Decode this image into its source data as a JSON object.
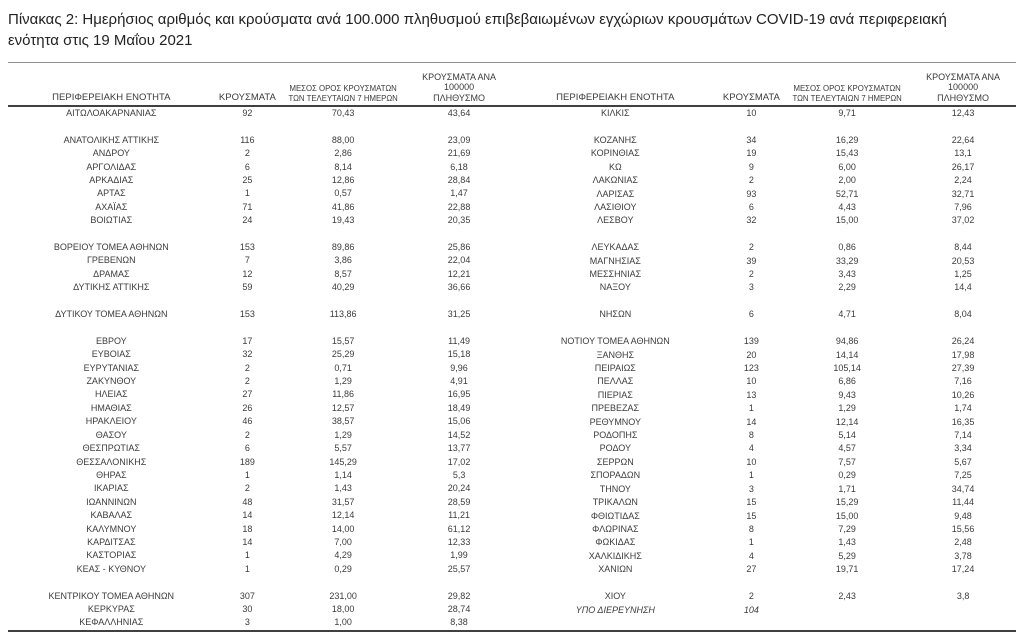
{
  "title": "Πίνακας 2: Ημερήσιος αριθμός και κρούσματα ανά 100.000 πληθυσμού επιβεβαιωμένων εγχώριων κρουσμάτων COVID-19 ανά περιφερειακή ενότητα στις 19 Μαΐου 2021",
  "colors": {
    "rule_dark": "#404040",
    "rule_light": "#909090",
    "text": "#3c3c3c"
  },
  "table": {
    "headers": {
      "region": "ΠΕΡΙΦΕΡΕΙΑΚΗ ΕΝΟΤΗΤΑ",
      "cases": "ΚΡΟΥΣΜΑΤΑ",
      "avg7_line1": "ΜΕΣΟΣ ΟΡΟΣ ΚΡΟΥΣΜΑΤΩΝ",
      "avg7_line2": "ΤΩΝ ΤΕΛΕΥΤΑΙΩΝ 7 ΗΜΕΡΩΝ",
      "per100k_line1": "ΚΡΟΥΣΜΑΤΑ ΑΝΑ 100000",
      "per100k_line2": "ΠΛΗΘΥΣΜΟ"
    },
    "left_rows": [
      {
        "cells": [
          "ΑΙΤΩΛΟΑΚΑΡΝΑΝΙΑΣ",
          "92",
          "70,43",
          "43,64"
        ]
      },
      {
        "cells": []
      },
      {
        "cells": [
          "ΑΝΑΤΟΛΙΚΗΣ ΑΤΤΙΚΗΣ",
          "116",
          "88,00",
          "23,09"
        ]
      },
      {
        "cells": [
          "ΑΝΔΡΟΥ",
          "2",
          "2,86",
          "21,69"
        ]
      },
      {
        "cells": [
          "ΑΡΓΟΛΙΔΑΣ",
          "6",
          "8,14",
          "6,18"
        ]
      },
      {
        "cells": [
          "ΑΡΚΑΔΙΑΣ",
          "25",
          "12,86",
          "28,84"
        ]
      },
      {
        "cells": [
          "ΑΡΤΑΣ",
          "1",
          "0,57",
          "1,47"
        ]
      },
      {
        "cells": [
          "ΑΧΑΪΑΣ",
          "71",
          "41,86",
          "22,88"
        ]
      },
      {
        "cells": [
          "ΒΟΙΩΤΙΑΣ",
          "24",
          "19,43",
          "20,35"
        ]
      },
      {
        "cells": []
      },
      {
        "cells": [
          "ΒΟΡΕΙΟΥ ΤΟΜΕΑ ΑΘΗΝΩΝ",
          "153",
          "89,86",
          "25,86"
        ]
      },
      {
        "cells": [
          "ΓΡΕΒΕΝΩΝ",
          "7",
          "3,86",
          "22,04"
        ]
      },
      {
        "cells": [
          "ΔΡΑΜΑΣ",
          "12",
          "8,57",
          "12,21"
        ]
      },
      {
        "cells": [
          "ΔΥΤΙΚΗΣ ΑΤΤΙΚΗΣ",
          "59",
          "40,29",
          "36,66"
        ]
      },
      {
        "cells": []
      },
      {
        "cells": [
          "ΔΥΤΙΚΟΥ ΤΟΜΕΑ ΑΘΗΝΩΝ",
          "153",
          "113,86",
          "31,25"
        ]
      },
      {
        "cells": []
      },
      {
        "cells": [
          "ΕΒΡΟΥ",
          "17",
          "15,57",
          "11,49"
        ]
      },
      {
        "cells": [
          "ΕΥΒΟΙΑΣ",
          "32",
          "25,29",
          "15,18"
        ]
      },
      {
        "cells": [
          "ΕΥΡΥΤΑΝΙΑΣ",
          "2",
          "0,71",
          "9,96"
        ]
      },
      {
        "cells": [
          "ΖΑΚΥΝΘΟΥ",
          "2",
          "1,29",
          "4,91"
        ]
      },
      {
        "cells": [
          "ΗΛΕΙΑΣ",
          "27",
          "11,86",
          "16,95"
        ]
      },
      {
        "cells": [
          "ΗΜΑΘΙΑΣ",
          "26",
          "12,57",
          "18,49"
        ]
      },
      {
        "cells": [
          "ΗΡΑΚΛΕΙΟΥ",
          "46",
          "38,57",
          "15,06"
        ]
      },
      {
        "cells": [
          "ΘΑΣΟΥ",
          "2",
          "1,29",
          "14,52"
        ]
      },
      {
        "cells": [
          "ΘΕΣΠΡΩΤΙΑΣ",
          "6",
          "5,57",
          "13,77"
        ]
      },
      {
        "cells": [
          "ΘΕΣΣΑΛΟΝΙΚΗΣ",
          "189",
          "145,29",
          "17,02"
        ]
      },
      {
        "cells": [
          "ΘΗΡΑΣ",
          "1",
          "1,14",
          "5,3"
        ]
      },
      {
        "cells": [
          "ΙΚΑΡΙΑΣ",
          "2",
          "1,43",
          "20,24"
        ]
      },
      {
        "cells": [
          "ΙΩΑΝΝΙΝΩΝ",
          "48",
          "31,57",
          "28,59"
        ]
      },
      {
        "cells": [
          "ΚΑΒΑΛΑΣ",
          "14",
          "12,14",
          "11,21"
        ]
      },
      {
        "cells": [
          "ΚΑΛΥΜΝΟΥ",
          "18",
          "14,00",
          "61,12"
        ]
      },
      {
        "cells": [
          "ΚΑΡΔΙΤΣΑΣ",
          "14",
          "7,00",
          "12,33"
        ]
      },
      {
        "cells": [
          "ΚΑΣΤΟΡΙΑΣ",
          "1",
          "4,29",
          "1,99"
        ]
      },
      {
        "cells": [
          "ΚΕΑΣ - ΚΥΘΝΟΥ",
          "1",
          "0,29",
          "25,57"
        ]
      },
      {
        "cells": []
      },
      {
        "cells": [
          "ΚΕΝΤΡΙΚΟΥ ΤΟΜΕΑ ΑΘΗΝΩΝ",
          "307",
          "231,00",
          "29,82"
        ]
      },
      {
        "cells": [
          "ΚΕΡΚΥΡΑΣ",
          "30",
          "18,00",
          "28,74"
        ]
      },
      {
        "cells": [
          "ΚΕΦΑΛΛΗΝΙΑΣ",
          "3",
          "1,00",
          "8,38"
        ]
      }
    ],
    "right_rows": [
      {
        "cells": [
          "ΚΙΛΚΙΣ",
          "10",
          "9,71",
          "12,43"
        ]
      },
      {
        "cells": []
      },
      {
        "cells": [
          "ΚΟΖΑΝΗΣ",
          "34",
          "16,29",
          "22,64"
        ]
      },
      {
        "cells": [
          "ΚΟΡΙΝΘΙΑΣ",
          "19",
          "15,43",
          "13,1"
        ]
      },
      {
        "cells": [
          "ΚΩ",
          "9",
          "6,00",
          "26,17"
        ]
      },
      {
        "cells": [
          "ΛΑΚΩΝΙΑΣ",
          "2",
          "2,00",
          "2,24"
        ]
      },
      {
        "cells": [
          "ΛΑΡΙΣΑΣ",
          "93",
          "52,71",
          "32,71"
        ]
      },
      {
        "cells": [
          "ΛΑΣΙΘΙΟΥ",
          "6",
          "4,43",
          "7,96"
        ]
      },
      {
        "cells": [
          "ΛΕΣΒΟΥ",
          "32",
          "15,00",
          "37,02"
        ]
      },
      {
        "cells": []
      },
      {
        "cells": [
          "ΛΕΥΚΑΔΑΣ",
          "2",
          "0,86",
          "8,44"
        ]
      },
      {
        "cells": [
          "ΜΑΓΝΗΣΙΑΣ",
          "39",
          "33,29",
          "20,53"
        ]
      },
      {
        "cells": [
          "ΜΕΣΣΗΝΙΑΣ",
          "2",
          "3,43",
          "1,25"
        ]
      },
      {
        "cells": [
          "ΝΑΞΟΥ",
          "3",
          "2,29",
          "14,4"
        ]
      },
      {
        "cells": []
      },
      {
        "cells": [
          "ΝΗΣΩΝ",
          "6",
          "4,71",
          "8,04"
        ]
      },
      {
        "cells": []
      },
      {
        "cells": [
          "ΝΟΤΙΟΥ ΤΟΜΕΑ ΑΘΗΝΩΝ",
          "139",
          "94,86",
          "26,24"
        ]
      },
      {
        "cells": [
          "ΞΑΝΘΗΣ",
          "20",
          "14,14",
          "17,98"
        ]
      },
      {
        "cells": [
          "ΠΕΙΡΑΙΩΣ",
          "123",
          "105,14",
          "27,39"
        ]
      },
      {
        "cells": [
          "ΠΕΛΛΑΣ",
          "10",
          "6,86",
          "7,16"
        ]
      },
      {
        "cells": [
          "ΠΙΕΡΙΑΣ",
          "13",
          "9,43",
          "10,26"
        ]
      },
      {
        "cells": [
          "ΠΡΕΒΕΖΑΣ",
          "1",
          "1,29",
          "1,74"
        ]
      },
      {
        "cells": [
          "ΡΕΘΥΜΝΟΥ",
          "14",
          "12,14",
          "16,35"
        ]
      },
      {
        "cells": [
          "ΡΟΔΟΠΗΣ",
          "8",
          "5,14",
          "7,14"
        ]
      },
      {
        "cells": [
          "ΡΟΔΟΥ",
          "4",
          "4,57",
          "3,34"
        ]
      },
      {
        "cells": [
          "ΣΕΡΡΩΝ",
          "10",
          "7,57",
          "5,67"
        ]
      },
      {
        "cells": [
          "ΣΠΟΡΑΔΩΝ",
          "1",
          "0,29",
          "7,25"
        ]
      },
      {
        "cells": [
          "ΤΗΝΟΥ",
          "3",
          "1,71",
          "34,74"
        ]
      },
      {
        "cells": [
          "ΤΡΙΚΑΛΩΝ",
          "15",
          "15,29",
          "11,44"
        ]
      },
      {
        "cells": [
          "ΦΘΙΩΤΙΔΑΣ",
          "15",
          "15,00",
          "9,48"
        ]
      },
      {
        "cells": [
          "ΦΛΩΡΙΝΑΣ",
          "8",
          "7,29",
          "15,56"
        ]
      },
      {
        "cells": [
          "ΦΩΚΙΔΑΣ",
          "1",
          "1,43",
          "2,48"
        ]
      },
      {
        "cells": [
          "ΧΑΛΚΙΔΙΚΗΣ",
          "4",
          "5,29",
          "3,78"
        ]
      },
      {
        "cells": [
          "ΧΑΝΙΩΝ",
          "27",
          "19,71",
          "17,24"
        ]
      },
      {
        "cells": []
      },
      {
        "cells": [
          "ΧΙΟΥ",
          "2",
          "2,43",
          "3,8"
        ]
      },
      {
        "cells": [
          "ΥΠΟ ΔΙΕΡΕΥΝΗΣΗ",
          "104",
          "",
          ""
        ],
        "italic": true
      },
      {
        "cells": []
      }
    ]
  }
}
